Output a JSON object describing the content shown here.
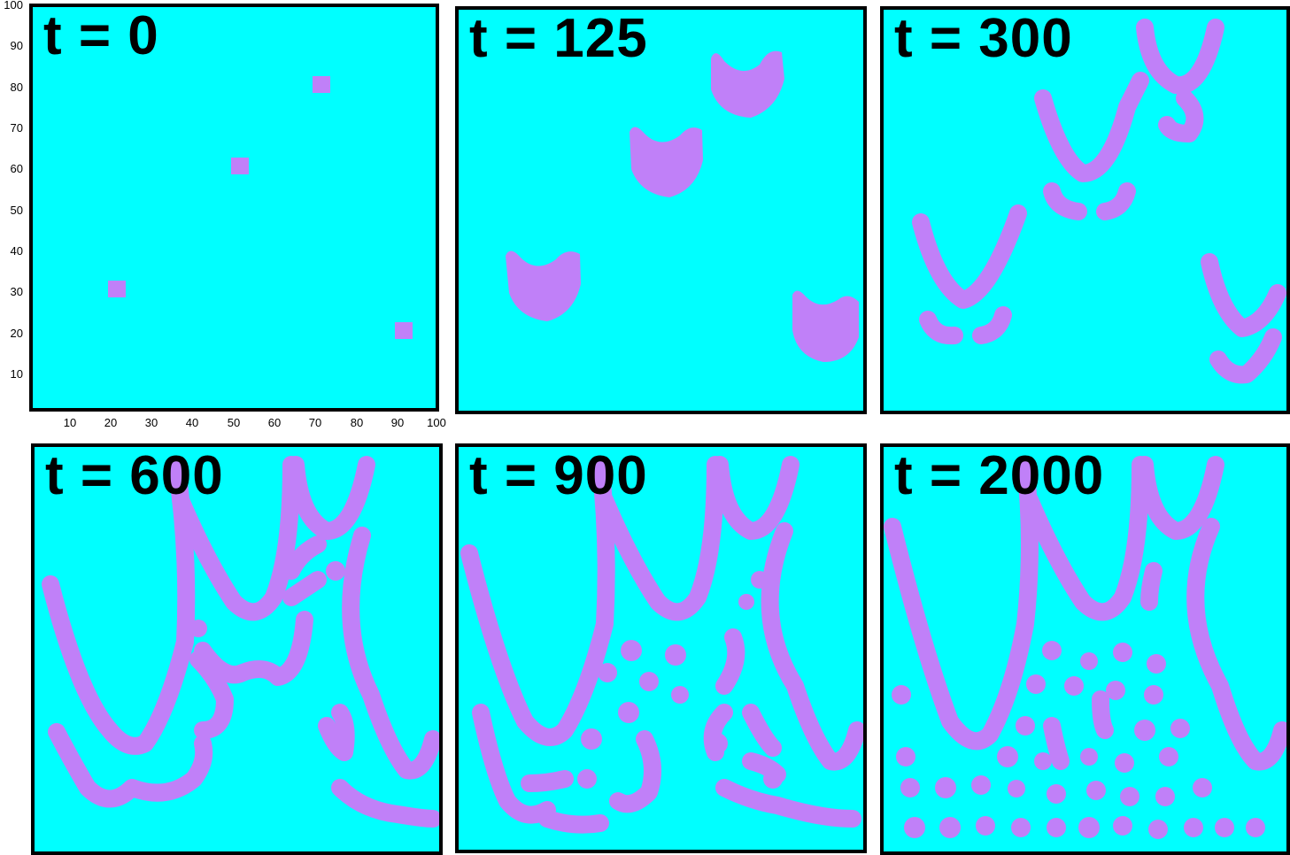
{
  "colors": {
    "field": "#00ffff",
    "pattern": "#c080f8",
    "frame": "#000000"
  },
  "axes": {
    "y_ticks": [
      "100",
      "90",
      "80",
      "70",
      "60",
      "50",
      "40",
      "30",
      "20",
      "10"
    ],
    "x_ticks": [
      "10",
      "20",
      "30",
      "40",
      "50",
      "60",
      "70",
      "80",
      "90",
      "100"
    ]
  },
  "panels": [
    {
      "label": "t = 0"
    },
    {
      "label": "t = 125"
    },
    {
      "label": "t = 300"
    },
    {
      "label": "t = 600"
    },
    {
      "label": "t = 900"
    },
    {
      "label": "t = 2000"
    }
  ]
}
